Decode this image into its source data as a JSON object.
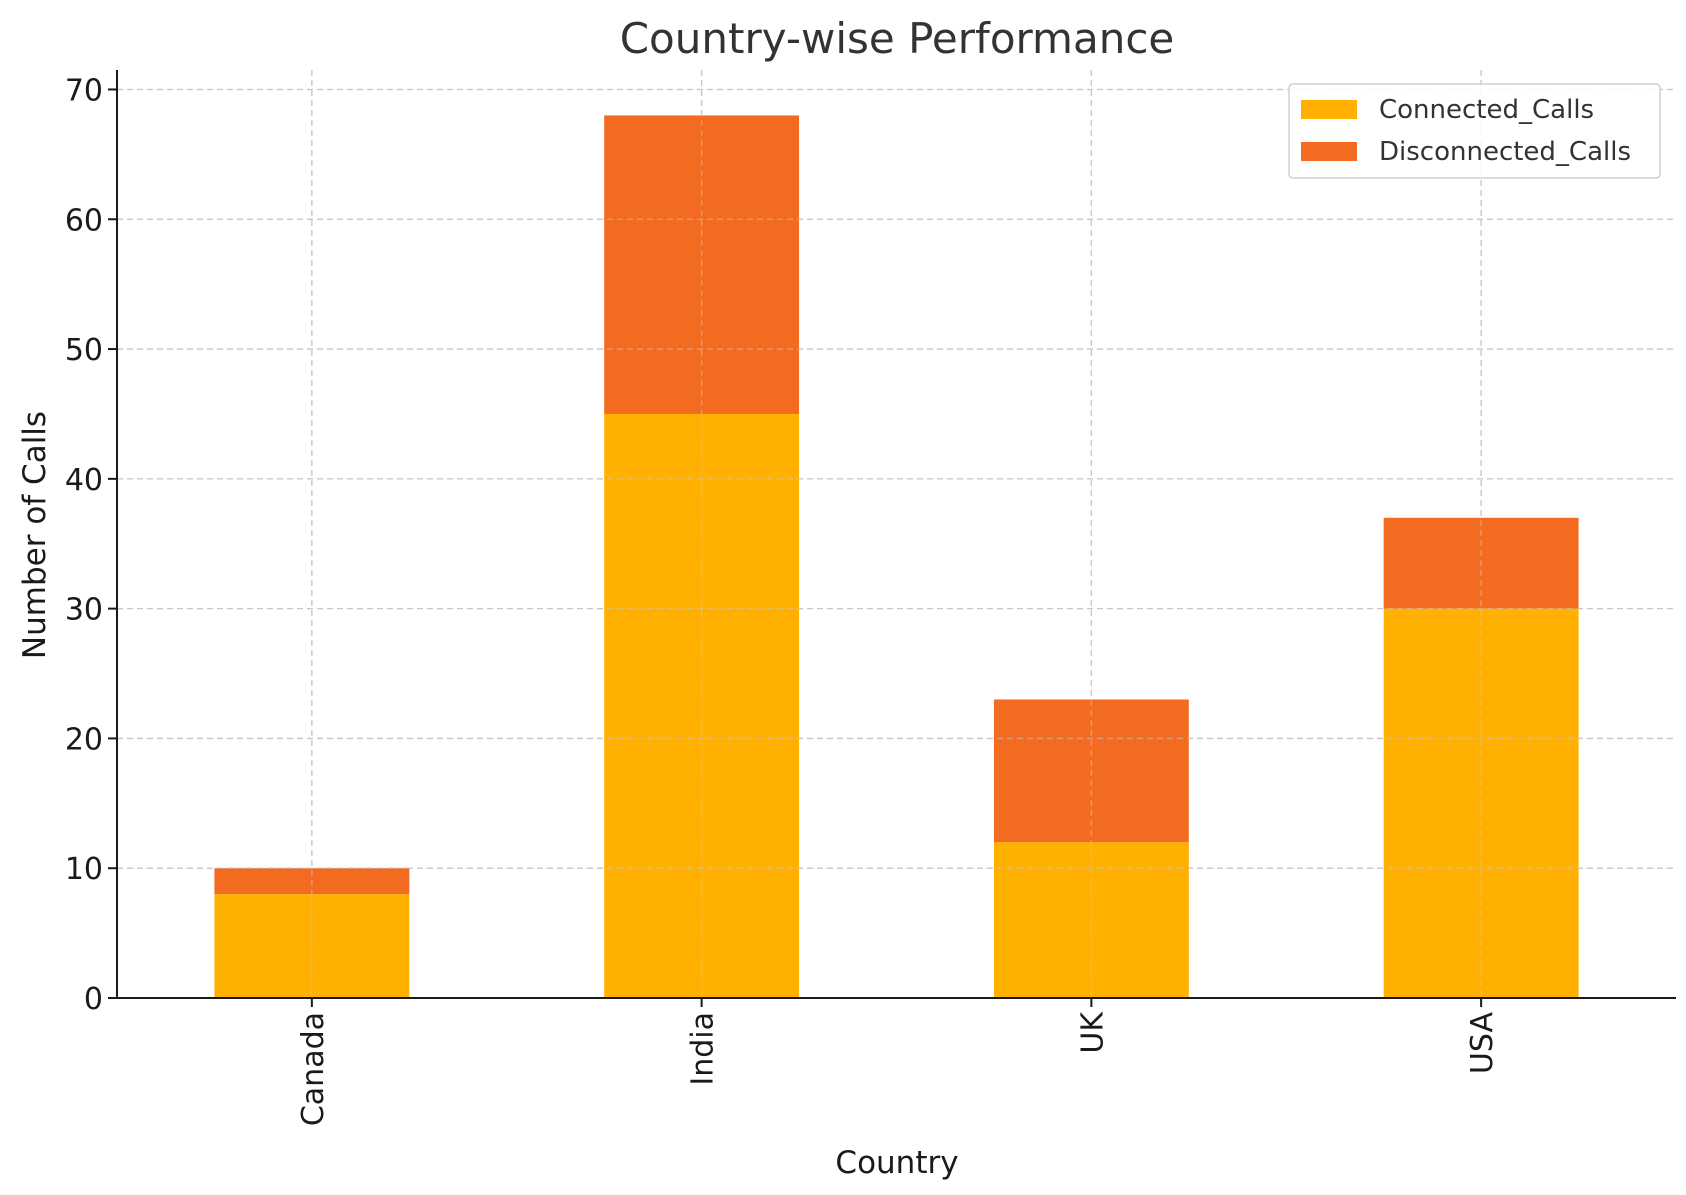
{
  "chart_data": {
    "type": "bar",
    "stacked": true,
    "title": "Country-wise Performance",
    "xlabel": "Country",
    "ylabel": "Number of Calls",
    "categories": [
      "Canada",
      "India",
      "UK",
      "USA"
    ],
    "series": [
      {
        "name": "Connected_Calls",
        "values": [
          8,
          45,
          12,
          30
        ],
        "color": "#FFB000"
      },
      {
        "name": "Disconnected_Calls",
        "values": [
          2,
          23,
          11,
          7
        ],
        "color": "#F26B21"
      }
    ],
    "ylim": [
      0,
      71.5
    ],
    "yticks": [
      0,
      10,
      20,
      30,
      40,
      50,
      60,
      70
    ],
    "grid": true,
    "legend_position": "top-right"
  }
}
